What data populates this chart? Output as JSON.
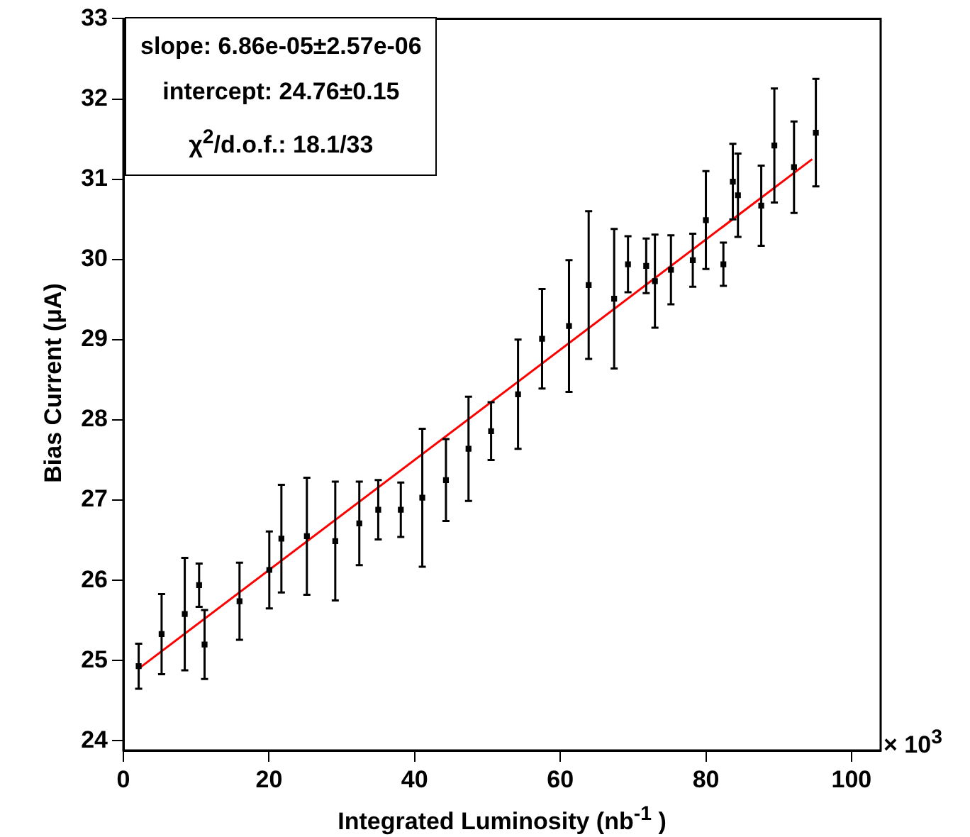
{
  "chart_data": {
    "type": "scatter",
    "xlabel": "Integrated Luminosity (nb$^{-1}$ )",
    "ylabel": "Bias Current (μA)",
    "annotations": [
      "slope: 6.86e-05±2.57e-06",
      "intercept: 24.76±0.15",
      "χ$^{2}$/d.o.f.: 18.1/33",
      "× 10$^{3}$"
    ],
    "xlim": [
      0,
      104
    ],
    "xticks": [
      0,
      20,
      40,
      60,
      80,
      100
    ],
    "ylim": [
      23.88,
      33
    ],
    "yticks": [
      24,
      25,
      26,
      27,
      28,
      29,
      30,
      31,
      32,
      33
    ],
    "grid": false,
    "legend": false,
    "series": [
      {
        "type": "scatter",
        "color": "#000000",
        "marker": "square",
        "x": [
          2.1,
          5.25,
          8.43,
          10.4,
          11.15,
          15.95,
          20.04,
          21.7,
          25.2,
          29.1,
          32.4,
          35.0,
          38.1,
          41.05,
          44.3,
          47.4,
          50.5,
          54.2,
          57.5,
          61.2,
          63.9,
          67.4,
          69.3,
          71.8,
          73.0,
          75.2,
          78.2,
          80.0,
          82.4,
          83.7,
          84.4,
          87.6,
          89.4,
          92.1,
          95.1
        ],
        "values": [
          24.93,
          25.33,
          25.58,
          25.94,
          25.2,
          25.74,
          26.13,
          26.52,
          26.55,
          26.49,
          26.71,
          26.88,
          26.88,
          27.03,
          27.25,
          27.64,
          27.86,
          28.32,
          29.01,
          29.17,
          29.68,
          29.51,
          29.94,
          29.92,
          29.73,
          29.87,
          29.99,
          30.49,
          29.94,
          30.97,
          30.8,
          30.67,
          31.42,
          31.15,
          31.58
        ],
        "errors": [
          0.28,
          0.5,
          0.7,
          0.27,
          0.43,
          0.48,
          0.48,
          0.67,
          0.73,
          0.74,
          0.52,
          0.37,
          0.34,
          0.86,
          0.51,
          0.65,
          0.36,
          0.68,
          0.62,
          0.82,
          0.92,
          0.87,
          0.35,
          0.34,
          0.58,
          0.43,
          0.33,
          0.61,
          0.27,
          0.47,
          0.52,
          0.5,
          0.71,
          0.57,
          0.67
        ]
      },
      {
        "type": "line",
        "color": "#ff0000",
        "marker": "none",
        "x": [
          2.1,
          94.6
        ],
        "values": [
          24.9,
          31.25
        ]
      }
    ]
  }
}
